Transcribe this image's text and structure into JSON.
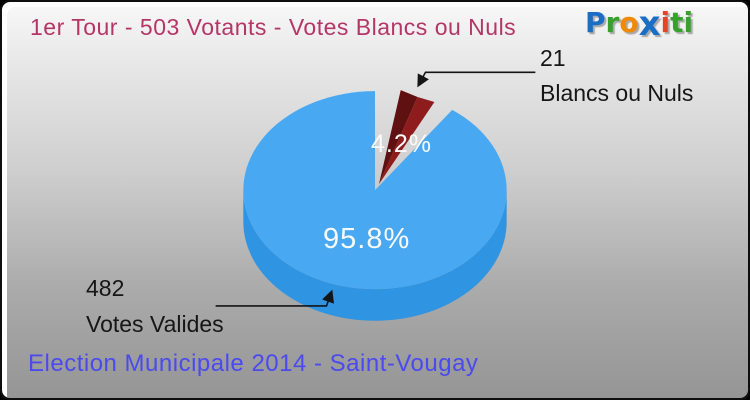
{
  "header": {
    "title": "1er Tour - 503 Votants - Votes Blancs ou Nuls"
  },
  "footer": {
    "title": "Election Municipale 2014 - Saint-Vougay"
  },
  "logo": {
    "name": "proxiti",
    "letters": [
      {
        "ch": "P",
        "color": "#1b6ec5",
        "big": false
      },
      {
        "ch": "r",
        "color": "#36a12c",
        "big": false
      },
      {
        "ch": "o",
        "color": "#f18a00",
        "big": false
      },
      {
        "ch": "x",
        "color": "#1b6ec5",
        "big": true
      },
      {
        "ch": "i",
        "color": "#e8432a",
        "big": false
      },
      {
        "ch": "t",
        "color": "#36a12c",
        "big": false
      },
      {
        "ch": "i",
        "color": "#36a12c",
        "big": false
      }
    ]
  },
  "chart_data": {
    "type": "pie",
    "style": "3d-exploded",
    "title": "1er Tour - 503 Votants - Votes Blancs ou Nuls",
    "total_votants": 503,
    "legend_position": "callouts",
    "slices": [
      {
        "label": "Votes Valides",
        "value": 482,
        "count_label": "482",
        "pct": 95.8,
        "pct_label": "95.8%",
        "color": "#49a8f2",
        "side_color": "#2f94e2",
        "exploded": false
      },
      {
        "label": "Blancs ou Nuls",
        "value": 21,
        "count_label": "21",
        "pct": 4.2,
        "pct_label": "4.2%",
        "color": "#8b1b1b",
        "side_color": "#5f1010",
        "exploded": true
      }
    ]
  },
  "colors": {
    "title": "#b53567",
    "footer": "#4a4af0",
    "callout_text": "#161616",
    "background_top": "#f8f8f8",
    "background_bottom": "#959595"
  }
}
